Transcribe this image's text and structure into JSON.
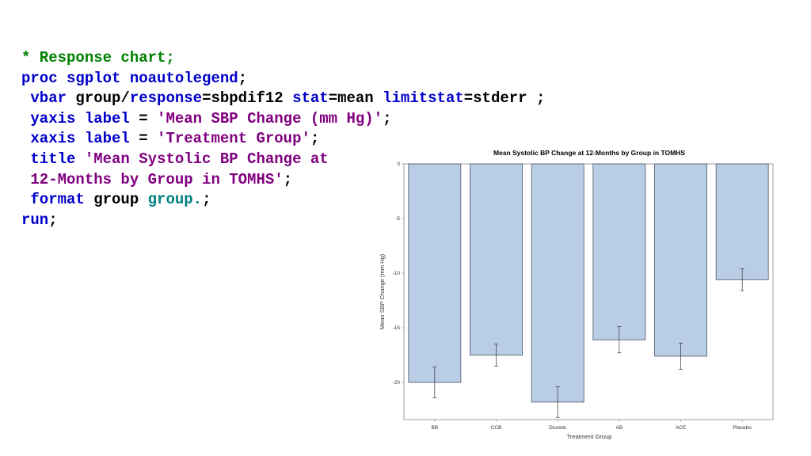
{
  "code": {
    "lines": [
      [
        {
          "t": "* Response chart;",
          "c": "comment"
        }
      ],
      [
        {
          "t": "proc sgplot ",
          "c": "kw"
        },
        {
          "t": "noautolegend",
          "c": "kw"
        },
        {
          "t": ";",
          "c": "plain"
        }
      ],
      [
        {
          "t": " vbar ",
          "c": "kw"
        },
        {
          "t": "group/",
          "c": "plain"
        },
        {
          "t": "response",
          "c": "kw"
        },
        {
          "t": "=sbpdif12 ",
          "c": "plain"
        },
        {
          "t": "stat",
          "c": "kw"
        },
        {
          "t": "=mean ",
          "c": "plain"
        },
        {
          "t": "limitstat",
          "c": "kw"
        },
        {
          "t": "=stderr ;",
          "c": "plain"
        }
      ],
      [
        {
          "t": " yaxis label",
          "c": "kw"
        },
        {
          "t": " = ",
          "c": "plain"
        },
        {
          "t": "'Mean SBP Change (mm Hg)'",
          "c": "str"
        },
        {
          "t": ";",
          "c": "plain"
        }
      ],
      [
        {
          "t": " xaxis label",
          "c": "kw"
        },
        {
          "t": " = ",
          "c": "plain"
        },
        {
          "t": "'Treatment Group'",
          "c": "str"
        },
        {
          "t": ";",
          "c": "plain"
        }
      ],
      [
        {
          "t": " title ",
          "c": "kw"
        },
        {
          "t": "'Mean Systolic BP Change at",
          "c": "str"
        }
      ],
      [
        {
          "t": " 12-Months by Group in TOMHS'",
          "c": "str"
        },
        {
          "t": ";",
          "c": "plain"
        }
      ],
      [
        {
          "t": " format ",
          "c": "kw"
        },
        {
          "t": "group ",
          "c": "plain"
        },
        {
          "t": "group.",
          "c": "fmt"
        },
        {
          "t": ";",
          "c": "plain"
        }
      ],
      [
        {
          "t": "run",
          "c": "kw"
        },
        {
          "t": ";",
          "c": "plain"
        }
      ]
    ]
  },
  "colors": {
    "bar_fill": "#b9cde6",
    "bar_stroke": "#4a5560",
    "comment": "#008000",
    "keyword": "#0000c8",
    "string": "#800080",
    "format": "#008080"
  },
  "chart_data": {
    "type": "bar",
    "title": "Mean Systolic BP Change at 12-Months by Group in TOMHS",
    "xlabel": "Treatment Group",
    "ylabel": "Mean SBP Change (mm Hg)",
    "categories": [
      "BB",
      "CCB",
      "Diuretic",
      "AB",
      "ACE",
      "Placebo"
    ],
    "values": [
      -20.0,
      -17.5,
      -21.8,
      -16.1,
      -17.6,
      -10.6
    ],
    "errors": [
      1.4,
      1.0,
      1.4,
      1.2,
      1.2,
      1.0
    ],
    "ylim": [
      -23.4,
      0
    ],
    "yticks": [
      0,
      -5,
      -10,
      -15,
      -20
    ],
    "ytick_labels": [
      "0",
      "-5",
      "-10",
      "-15",
      "-20"
    ],
    "grid": false,
    "legend": "none"
  }
}
